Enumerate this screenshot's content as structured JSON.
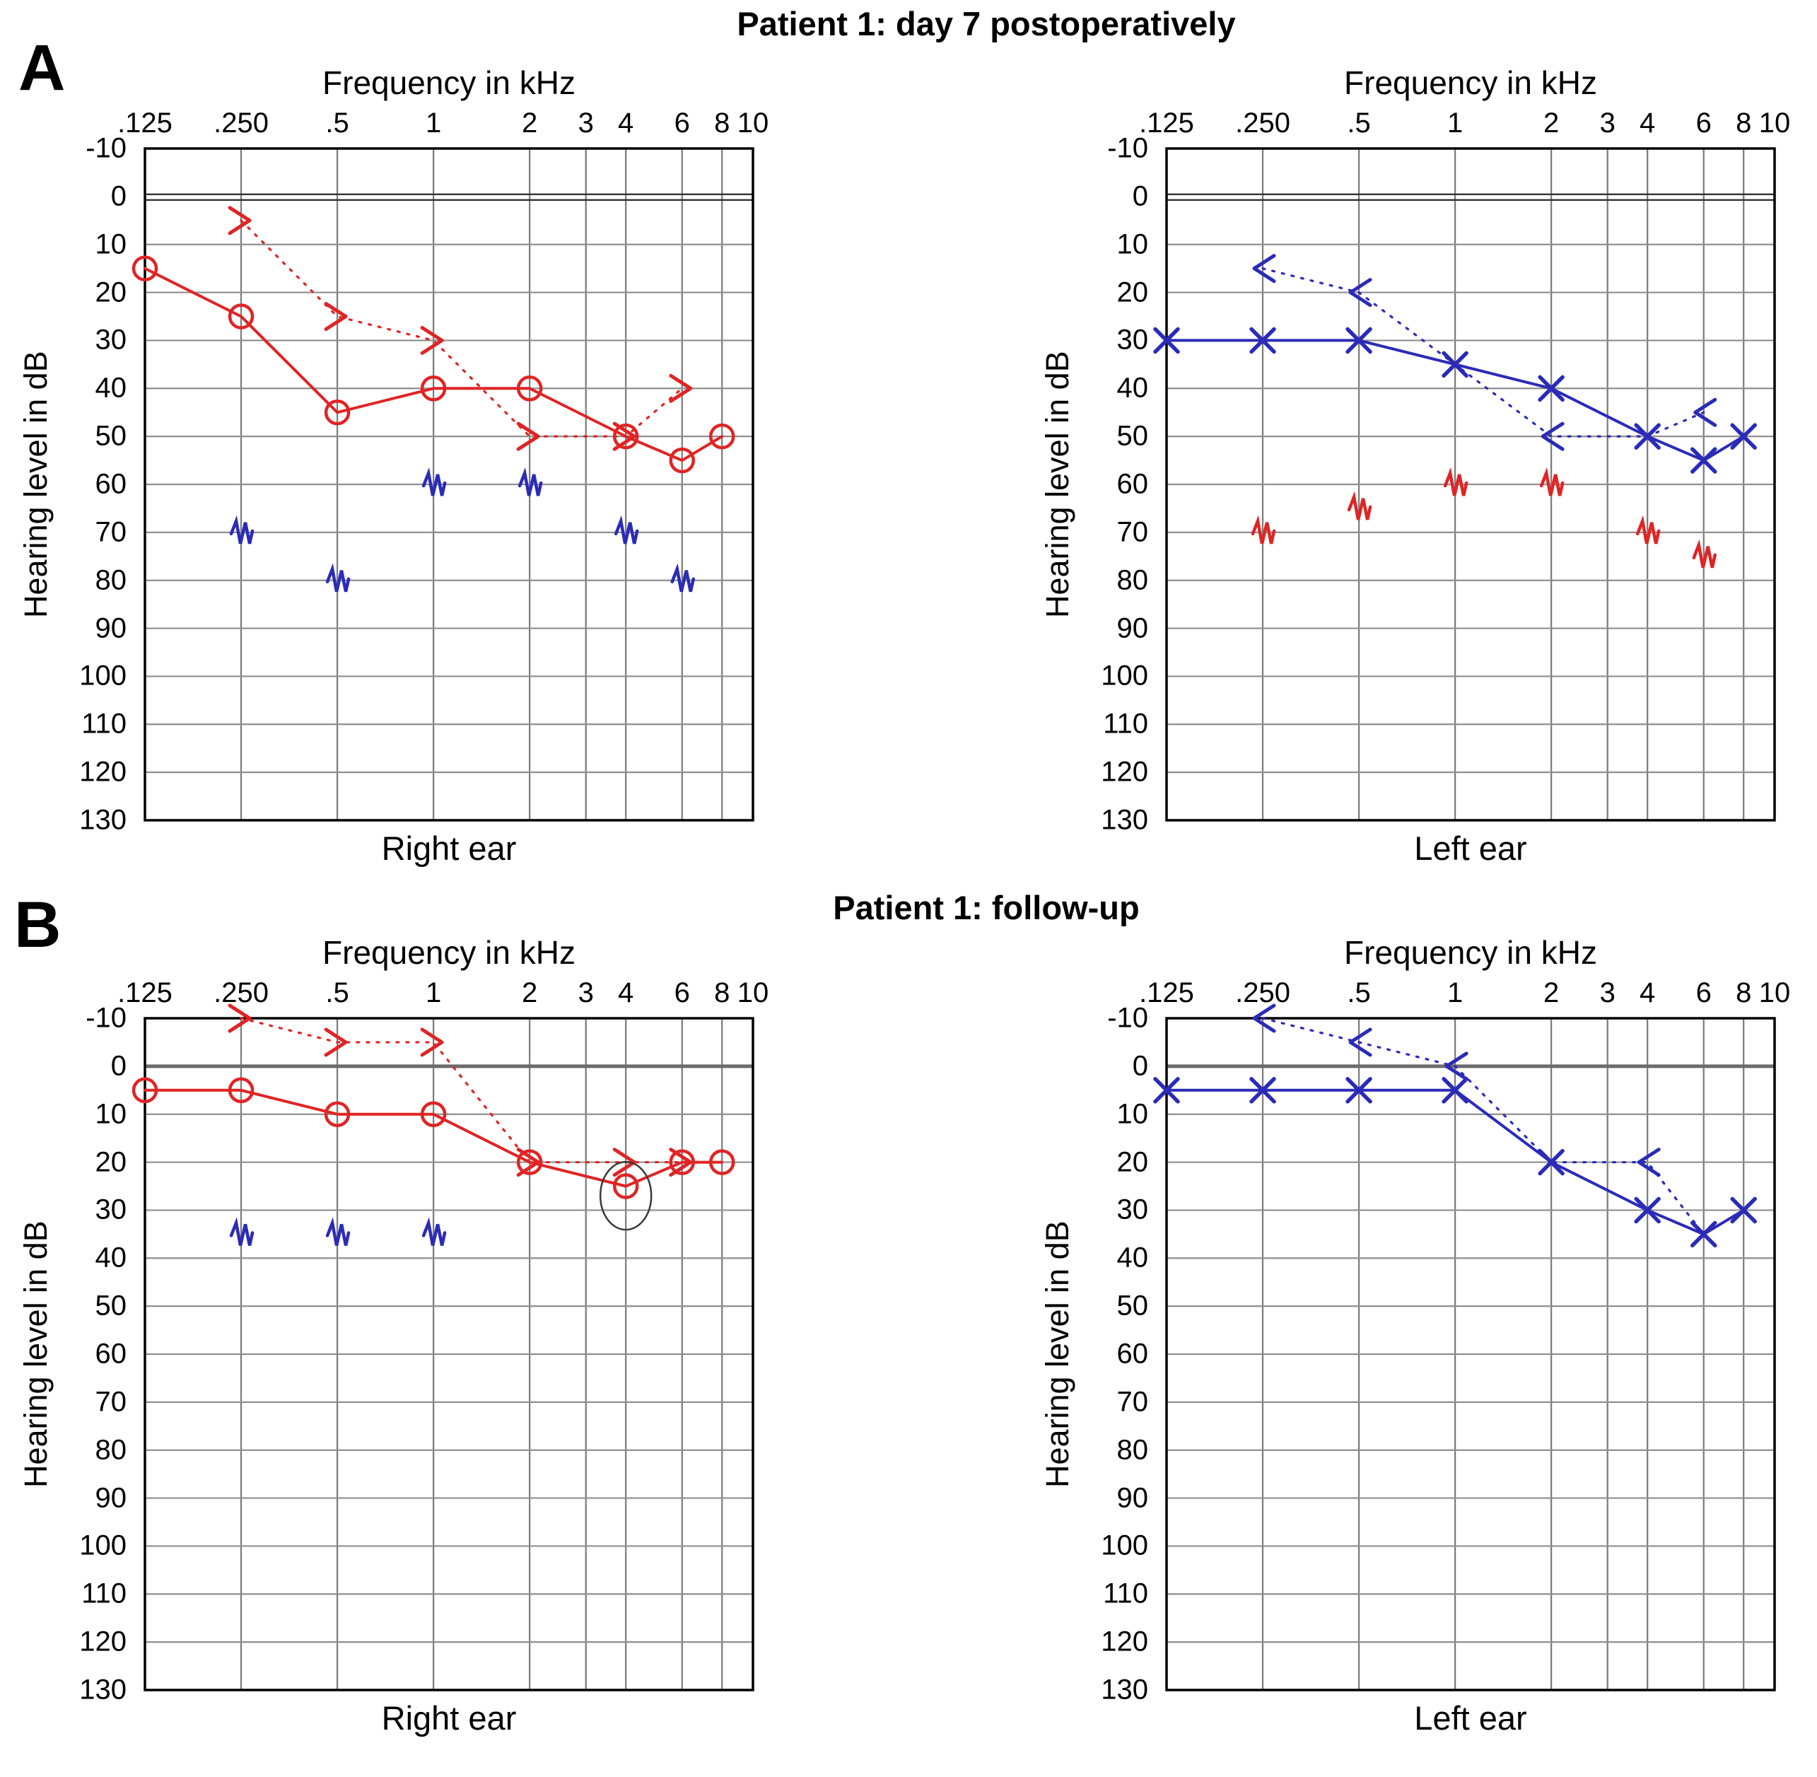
{
  "page": {
    "panel_a": {
      "label": "A",
      "title": "Patient 1: day 7 postoperatively"
    },
    "panel_b": {
      "label": "B",
      "title": "Patient 1: follow-up"
    }
  },
  "axes": {
    "x_title": "Frequency in kHz",
    "x_ticks": [
      ".125",
      ".250",
      ".5",
      "1",
      "2",
      "3",
      "4",
      "6",
      "8",
      "10"
    ],
    "x_tick_values": [
      0.125,
      0.25,
      0.5,
      1,
      2,
      3,
      4,
      6,
      8,
      10
    ],
    "y_title": "Hearing level in dB",
    "y_min": -10,
    "y_max": 130,
    "y_step": 10,
    "grid": true
  },
  "colors": {
    "right_ear": "#e02424",
    "left_ear": "#2b2bb8",
    "grid": "#7a7a7a",
    "grid_light": "#8f8f8f",
    "axis": "#000000",
    "annotation": "#3a3a3a"
  },
  "chart_data": [
    {
      "type": "line",
      "panel": "A",
      "ear_label": "Right ear",
      "zero_line": "double",
      "series": [
        {
          "name": "air-conduction-right",
          "marker": "circle",
          "line": "solid",
          "color_key": "right_ear",
          "points": [
            [
              0.125,
              15
            ],
            [
              0.25,
              25
            ],
            [
              0.5,
              45
            ],
            [
              1,
              40
            ],
            [
              2,
              40
            ],
            [
              4,
              50
            ],
            [
              6,
              55
            ],
            [
              8,
              50
            ]
          ]
        },
        {
          "name": "bone-conduction-right",
          "marker": "arrow-right",
          "line": "dotted",
          "color_key": "right_ear",
          "points": [
            [
              0.25,
              5
            ],
            [
              0.5,
              25
            ],
            [
              1,
              30
            ],
            [
              2,
              50
            ],
            [
              4,
              50
            ],
            [
              6,
              40
            ]
          ]
        },
        {
          "name": "masking-noise-contralateral",
          "marker": "zigzag",
          "line": "none",
          "color_key": "left_ear",
          "points": [
            [
              0.25,
              70
            ],
            [
              0.5,
              80
            ],
            [
              1,
              60
            ],
            [
              2,
              60
            ],
            [
              4,
              70
            ],
            [
              6,
              80
            ]
          ]
        }
      ]
    },
    {
      "type": "line",
      "panel": "A",
      "ear_label": "Left ear",
      "zero_line": "double",
      "series": [
        {
          "name": "air-conduction-left",
          "marker": "x",
          "line": "solid",
          "color_key": "left_ear",
          "points": [
            [
              0.125,
              30
            ],
            [
              0.25,
              30
            ],
            [
              0.5,
              30
            ],
            [
              1,
              35
            ],
            [
              2,
              40
            ],
            [
              4,
              50
            ],
            [
              6,
              55
            ],
            [
              8,
              50
            ]
          ]
        },
        {
          "name": "bone-conduction-left",
          "marker": "arrow-left",
          "line": "dotted",
          "color_key": "left_ear",
          "points": [
            [
              0.25,
              15
            ],
            [
              0.5,
              20
            ],
            [
              1,
              35
            ],
            [
              2,
              50
            ],
            [
              4,
              50
            ],
            [
              6,
              45
            ]
          ],
          "hide_markers": [
            2,
            4
          ]
        },
        {
          "name": "masking-noise-contralateral",
          "marker": "zigzag",
          "line": "none",
          "color_key": "right_ear",
          "points": [
            [
              0.25,
              70
            ],
            [
              0.5,
              65
            ],
            [
              1,
              60
            ],
            [
              2,
              60
            ],
            [
              4,
              70
            ],
            [
              6,
              75
            ]
          ]
        }
      ]
    },
    {
      "type": "line",
      "panel": "B",
      "ear_label": "Right ear",
      "zero_line": "thick",
      "annotation": {
        "shape": "ellipse",
        "x": 4,
        "y": 27
      },
      "series": [
        {
          "name": "air-conduction-right",
          "marker": "circle",
          "line": "solid",
          "color_key": "right_ear",
          "points": [
            [
              0.125,
              5
            ],
            [
              0.25,
              5
            ],
            [
              0.5,
              10
            ],
            [
              1,
              10
            ],
            [
              2,
              20
            ],
            [
              4,
              25
            ],
            [
              6,
              20
            ],
            [
              8,
              20
            ]
          ]
        },
        {
          "name": "bone-conduction-right",
          "marker": "arrow-right",
          "line": "dotted",
          "color_key": "right_ear",
          "points": [
            [
              0.25,
              -10
            ],
            [
              0.5,
              -5
            ],
            [
              1,
              -5
            ],
            [
              2,
              20
            ],
            [
              4,
              20
            ],
            [
              6,
              20
            ]
          ]
        },
        {
          "name": "masking-noise-contralateral",
          "marker": "zigzag",
          "line": "none",
          "color_key": "left_ear",
          "points": [
            [
              0.25,
              35
            ],
            [
              0.5,
              35
            ],
            [
              1,
              35
            ]
          ]
        }
      ]
    },
    {
      "type": "line",
      "panel": "B",
      "ear_label": "Left ear",
      "zero_line": "thick",
      "series": [
        {
          "name": "air-conduction-left",
          "marker": "x",
          "line": "solid",
          "color_key": "left_ear",
          "points": [
            [
              0.125,
              5
            ],
            [
              0.25,
              5
            ],
            [
              0.5,
              5
            ],
            [
              1,
              5
            ],
            [
              2,
              20
            ],
            [
              4,
              30
            ],
            [
              6,
              35
            ],
            [
              8,
              30
            ]
          ]
        },
        {
          "name": "bone-conduction-left",
          "marker": "arrow-left",
          "line": "dotted",
          "color_key": "left_ear",
          "points": [
            [
              0.25,
              -10
            ],
            [
              0.5,
              -5
            ],
            [
              1,
              0
            ],
            [
              2,
              20
            ],
            [
              4,
              20
            ],
            [
              6,
              35
            ]
          ],
          "hide_markers": [
            3,
            5
          ]
        }
      ]
    }
  ]
}
